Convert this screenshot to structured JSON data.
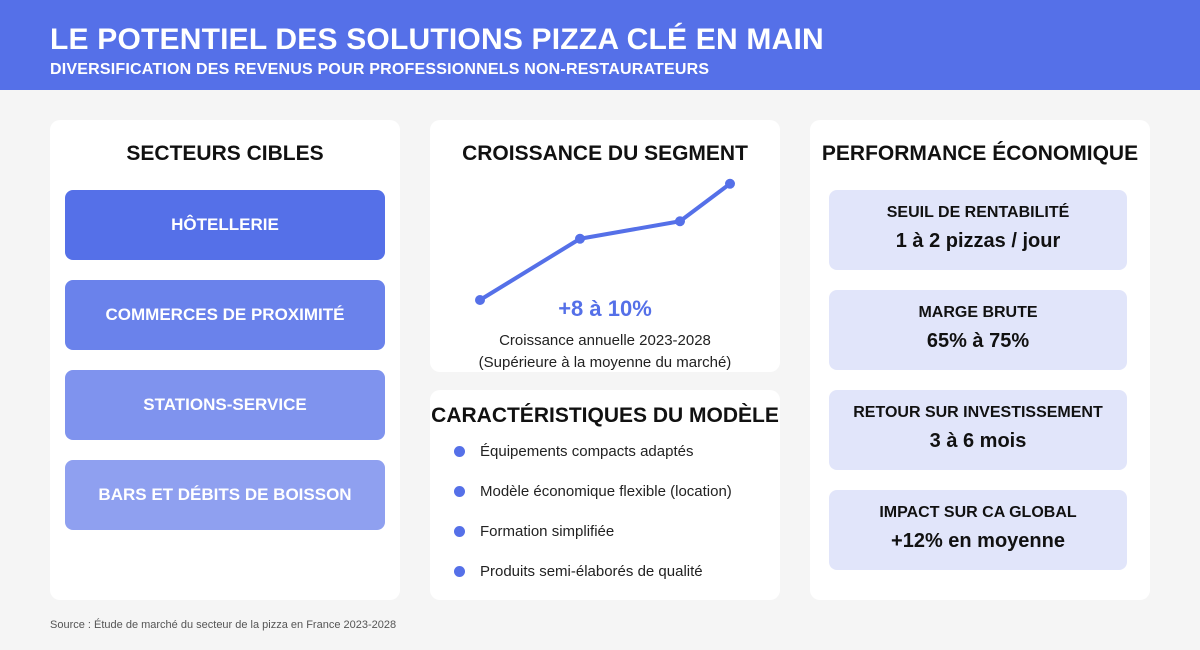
{
  "header": {
    "title": "LE POTENTIEL DES SOLUTIONS PIZZA CLÉ EN MAIN",
    "subtitle": "DIVERSIFICATION DES REVENUS POUR PROFESSIONNELS NON-RESTAURATEURS"
  },
  "sectors": {
    "title": "SECTEURS CIBLES",
    "items": [
      {
        "label": "HÔTELLERIE",
        "color": "#5570e8"
      },
      {
        "label": "COMMERCES DE PROXIMITÉ",
        "color": "#6a82eb"
      },
      {
        "label": "STATIONS-SERVICE",
        "color": "#7f93ee"
      },
      {
        "label": "BARS ET DÉBITS DE BOISSON",
        "color": "#8fa0f0"
      }
    ]
  },
  "growth": {
    "title": "CROISSANCE DU SEGMENT",
    "value": "+8 à 10%",
    "caption_line1": "Croissance annuelle 2023-2028",
    "caption_line2": "(Supérieure à la moyenne du marché)"
  },
  "chart_data": {
    "type": "line",
    "title": "",
    "xlabel": "",
    "ylabel": "",
    "x": [
      1,
      2,
      3,
      4
    ],
    "series": [
      {
        "values": [
          0,
          0.49,
          0.63,
          0.93
        ]
      }
    ],
    "ylim": [
      0,
      1
    ],
    "grid": false,
    "line_color": "#5570e8"
  },
  "model": {
    "title": "CARACTÉRISTIQUES DU MODÈLE",
    "features": [
      "Équipements compacts adaptés",
      "Modèle économique flexible (location)",
      "Formation simplifiée",
      "Produits semi-élaborés de qualité"
    ]
  },
  "performance": {
    "title": "PERFORMANCE ÉCONOMIQUE",
    "metrics": [
      {
        "label": "SEUIL DE RENTABILITÉ",
        "value": "1 à 2 pizzas / jour"
      },
      {
        "label": "MARGE BRUTE",
        "value": "65% à 75%"
      },
      {
        "label": "RETOUR SUR INVESTISSEMENT",
        "value": "3 à 6 mois"
      },
      {
        "label": "IMPACT SUR CA GLOBAL",
        "value": "+12% en moyenne"
      }
    ]
  },
  "source": "Source : Étude de marché du secteur de la pizza en France 2023-2028"
}
